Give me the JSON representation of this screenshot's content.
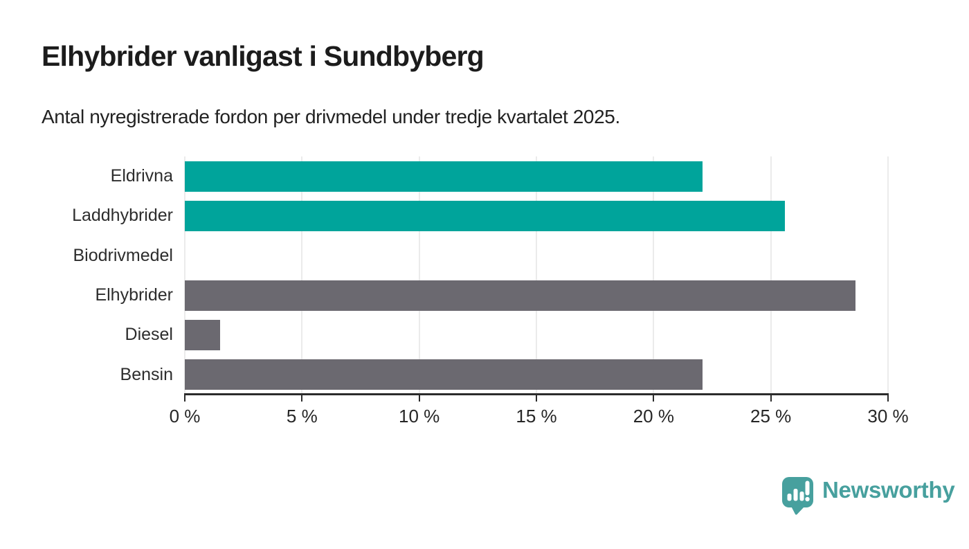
{
  "header": {
    "title": "Elhybrider vanligast i Sundbyberg",
    "subtitle": "Antal nyregistrerade fordon per drivmedel under tredje kvartalet 2025."
  },
  "chart_data": {
    "type": "bar",
    "orientation": "horizontal",
    "categories": [
      "Eldrivna",
      "Laddhybrider",
      "Biodrivmedel",
      "Elhybrider",
      "Diesel",
      "Bensin"
    ],
    "values": [
      22.1,
      25.6,
      0,
      28.6,
      1.5,
      22.1
    ],
    "value_unit": "%",
    "bar_colors": [
      "#00a49b",
      "#00a49b",
      "#00a49b",
      "#6b6970",
      "#6b6970",
      "#6b6970"
    ],
    "accent_teal": "#00a49b",
    "neutral_gray": "#6b6970",
    "xlim": [
      0,
      30
    ],
    "xticks": [
      0,
      5,
      10,
      15,
      20,
      25,
      30
    ],
    "xtick_labels": [
      "0 %",
      "5 %",
      "10 %",
      "15 %",
      "20 %",
      "25 %",
      "30 %"
    ],
    "grid": true,
    "gridline_color": "#ebebeb",
    "axis_color": "#2b2b2b",
    "legend_position": "none",
    "title": "Elhybrider vanligast i Sundbyberg",
    "xlabel": "",
    "ylabel": ""
  },
  "footer": {
    "brand": "Newsworthy",
    "brand_color": "#47a09e",
    "logo_icon": "newsworthy-chart-speech-bubble-icon"
  }
}
